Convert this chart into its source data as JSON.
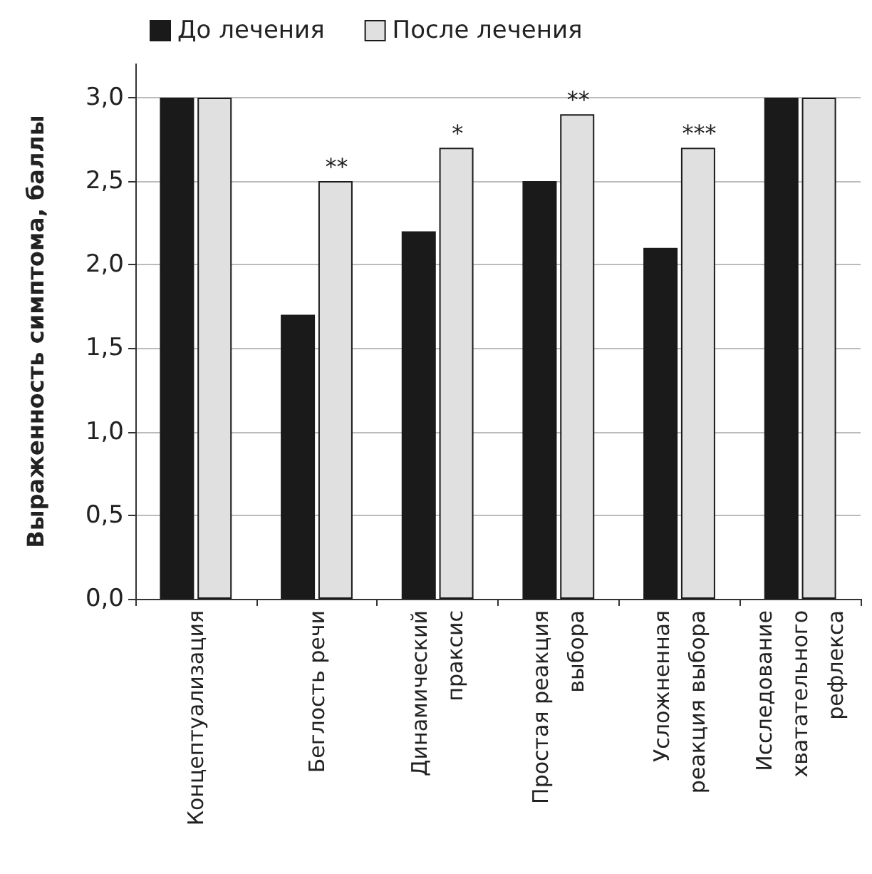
{
  "chart_data": {
    "type": "bar",
    "ylabel": "Выраженность симптома, баллы",
    "categories": [
      "Концептуализация",
      "Беглость речи",
      "Динамический\nпраксис",
      "Простая реакция\nвыбора",
      "Усложненная\nреакция выбора",
      "Исследование\nхватательного\nрефлекса"
    ],
    "series": [
      {
        "name": "До лечения",
        "color": "#1a1a1a",
        "values": [
          3.0,
          1.7,
          2.2,
          2.5,
          2.1,
          3.0
        ]
      },
      {
        "name": "После лечения",
        "color": "#e0e0e0",
        "values": [
          3.0,
          2.5,
          2.7,
          2.9,
          2.7,
          3.0
        ]
      }
    ],
    "ylim": [
      0,
      3.2
    ],
    "yticks": [
      {
        "value": 0,
        "label": "0,0"
      },
      {
        "value": 0.5,
        "label": "0,5"
      },
      {
        "value": 1,
        "label": "1,0"
      },
      {
        "value": 1.5,
        "label": "1,5"
      },
      {
        "value": 2,
        "label": "2,0"
      },
      {
        "value": 2.5,
        "label": "2,5"
      },
      {
        "value": 3,
        "label": "3,0"
      }
    ],
    "annotations": [
      {
        "text": "**",
        "x": "Беглость речи",
        "y": 2.5
      },
      {
        "text": "*",
        "x": "Динамический\nпраксис",
        "y": 2.7
      },
      {
        "text": "**",
        "x": "Простая реакция\nвыбора",
        "y": 2.9
      },
      {
        "text": "***",
        "x": "Усложненная\nреакция выбора",
        "y": 2.7
      }
    ],
    "grid": "y",
    "legend": "top left"
  }
}
